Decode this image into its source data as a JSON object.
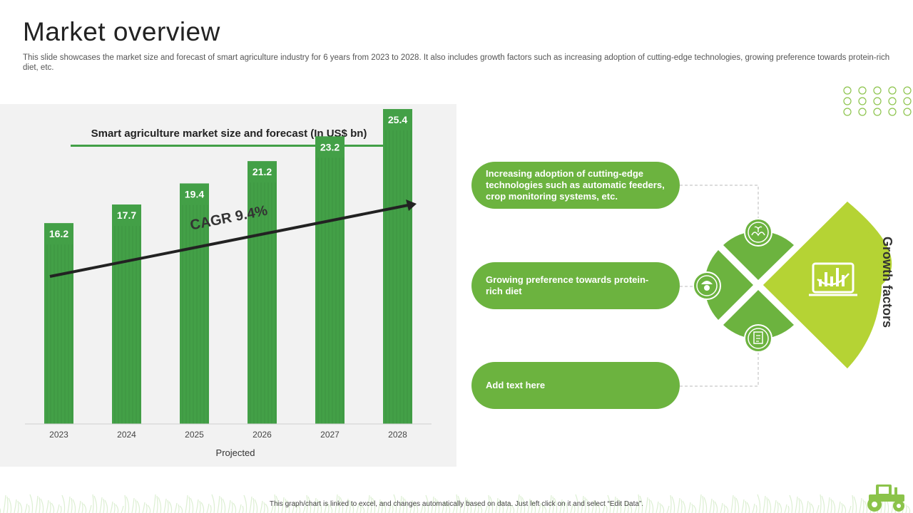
{
  "title": "Market overview",
  "subtitle": "This slide showcases the market size and forecast of smart agriculture industry for 6 years from 2023 to 2028. It also includes growth factors such as increasing adoption of cutting-edge technologies, growing preference towards protein-rich diet, etc.",
  "chart_data": {
    "type": "bar",
    "title": "Smart agriculture market size and forecast (In US$ bn)",
    "categories": [
      "2023",
      "2024",
      "2025",
      "2026",
      "2027",
      "2028"
    ],
    "values": [
      16.2,
      17.7,
      19.4,
      21.2,
      23.2,
      25.4
    ],
    "xlabel": "Projected",
    "ylabel": "",
    "ylim": [
      0,
      27
    ],
    "bar_color": "#43a047",
    "annotation": "CAGR 9.4%",
    "grid": false
  },
  "growth_factors": {
    "label": "Growth factors",
    "items": [
      {
        "text": "Increasing adoption of cutting-edge technologies such as automatic feeders, crop monitoring systems,  etc.",
        "icon": "hands-plant-icon"
      },
      {
        "text": "Growing preference towards protein-rich diet",
        "icon": "farmer-icon"
      },
      {
        "text": "Add text here",
        "icon": "document-icon"
      }
    ],
    "center_icon": "analytics-laptop-icon"
  },
  "colors": {
    "pill_green": "#6cb33f",
    "bar_green": "#43a047",
    "fan_lime": "#b5d334",
    "dots": "#8bc34a"
  },
  "footer": "This graph/chart is linked to excel, and changes automatically based on data. Just left click on it and select “Edit Data”."
}
